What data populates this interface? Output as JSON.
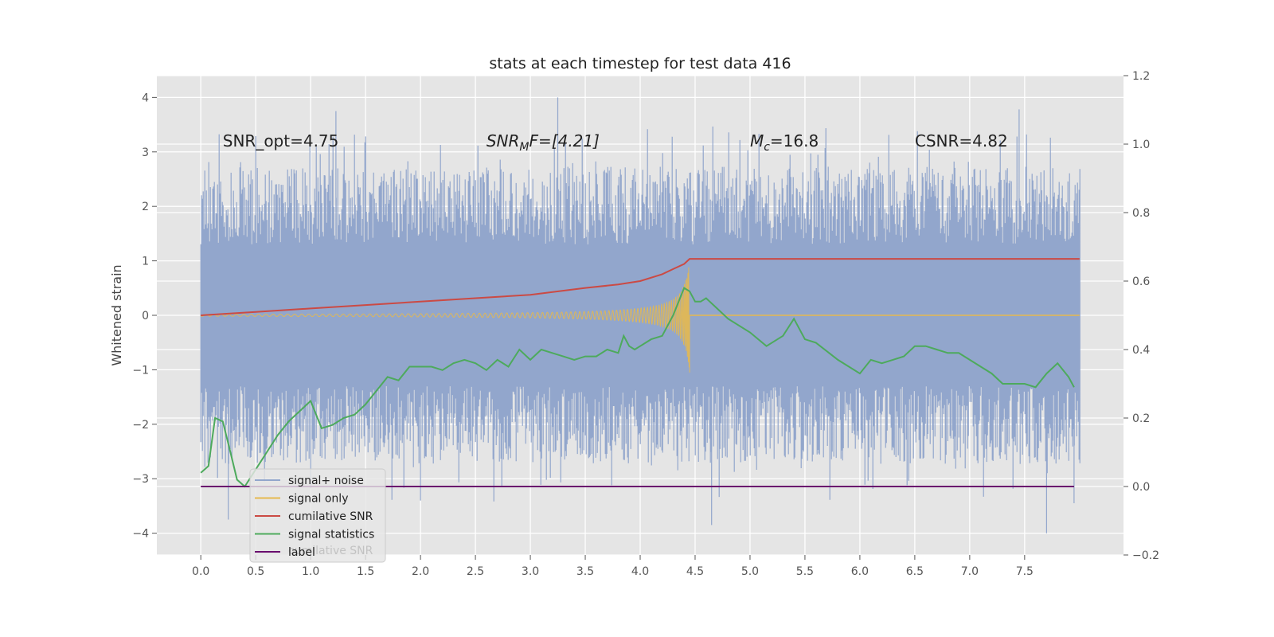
{
  "chart_data": {
    "type": "line",
    "title": "stats at each timestep for test data 416",
    "ylabel": "Whitened strain",
    "xlabel": "",
    "xlim": [
      -0.4,
      8.4
    ],
    "ylim": [
      -4.4,
      4.4
    ],
    "y2lim": [
      -0.2,
      1.2
    ],
    "x_ticks": [
      0.0,
      0.5,
      1.0,
      1.5,
      2.0,
      2.5,
      3.0,
      3.5,
      4.0,
      4.5,
      5.0,
      5.5,
      6.0,
      6.5,
      7.0,
      7.5
    ],
    "x_tick_labels": [
      "0.0",
      "0.5",
      "1.0",
      "1.5",
      "2.0",
      "2.5",
      "3.0",
      "3.5",
      "4.0",
      "4.5",
      "5.0",
      "5.5",
      "6.0",
      "6.5",
      "7.0",
      "7.5"
    ],
    "y_ticks": [
      -4,
      -3,
      -2,
      -1,
      0,
      1,
      2,
      3,
      4
    ],
    "y_tick_labels": [
      "−4",
      "−3",
      "−2",
      "−1",
      "0",
      "1",
      "2",
      "3",
      "4"
    ],
    "y2_ticks": [
      -0.2,
      0.0,
      0.2,
      0.4,
      0.6,
      0.8,
      1.0,
      1.2
    ],
    "y2_tick_labels": [
      "−0.2",
      "0.0",
      "0.2",
      "0.4",
      "0.6",
      "0.8",
      "1.0",
      "1.2"
    ],
    "grid": true,
    "legend_position": "lower-left",
    "annotations": [
      {
        "text": "SNR_opt=4.75",
        "x": 0.2,
        "y": 3.2
      },
      {
        "text": "SNR_MF=[4.21]",
        "x": 2.6,
        "y": 3.2,
        "main": "SNR",
        "sub": "M",
        "rest": "F=[4.21]"
      },
      {
        "text": "M_c=16.8",
        "x": 5.0,
        "y": 3.2,
        "main": "M",
        "sub": "c",
        "rest": "=16.8"
      },
      {
        "text": "CSNR=4.82",
        "x": 6.5,
        "y": 3.2
      }
    ],
    "series": [
      {
        "name": "signal+ noise",
        "color": "#92a6cc",
        "axis": "left",
        "kind": "noise-band",
        "x_range": [
          0.0,
          8.0
        ],
        "core_range": [
          -1.3,
          1.3
        ],
        "typical_peak": 2.6,
        "max_peak": 4.0,
        "min_peak": -4.0
      },
      {
        "name": "signal only",
        "color": "#e6b94f",
        "axis": "left",
        "kind": "chirp",
        "x_range": [
          0.0,
          4.45
        ],
        "merger_time": 4.45,
        "peak_amplitude": 1.05
      },
      {
        "name": "cumilative SNR",
        "color": "#cb4a44",
        "axis": "right",
        "x": [
          0.0,
          0.5,
          1.0,
          1.5,
          2.0,
          2.5,
          3.0,
          3.5,
          3.8,
          4.0,
          4.2,
          4.3,
          4.4,
          4.45,
          5.0,
          6.0,
          7.0,
          8.0
        ],
        "y": [
          0.5,
          0.51,
          0.52,
          0.53,
          0.54,
          0.55,
          0.56,
          0.58,
          0.59,
          0.6,
          0.62,
          0.635,
          0.65,
          0.665,
          0.665,
          0.665,
          0.665,
          0.665
        ]
      },
      {
        "name": "signal statistics",
        "color": "#4daa5c",
        "axis": "right",
        "x": [
          0.0,
          0.07,
          0.13,
          0.2,
          0.27,
          0.33,
          0.4,
          0.5,
          0.6,
          0.7,
          0.8,
          0.9,
          1.0,
          1.1,
          1.2,
          1.3,
          1.4,
          1.5,
          1.6,
          1.7,
          1.8,
          1.9,
          2.0,
          2.1,
          2.2,
          2.3,
          2.4,
          2.5,
          2.6,
          2.7,
          2.8,
          2.9,
          3.0,
          3.1,
          3.2,
          3.3,
          3.4,
          3.5,
          3.6,
          3.7,
          3.8,
          3.85,
          3.9,
          3.95,
          4.0,
          4.1,
          4.2,
          4.3,
          4.4,
          4.45,
          4.5,
          4.55,
          4.6,
          4.7,
          4.8,
          5.0,
          5.15,
          5.3,
          5.4,
          5.5,
          5.6,
          5.8,
          6.0,
          6.1,
          6.2,
          6.3,
          6.4,
          6.5,
          6.6,
          6.7,
          6.8,
          6.9,
          7.0,
          7.1,
          7.2,
          7.3,
          7.4,
          7.5,
          7.6,
          7.7,
          7.8,
          7.9,
          7.95
        ],
        "y": [
          0.04,
          0.06,
          0.2,
          0.19,
          0.1,
          0.02,
          0.0,
          0.05,
          0.1,
          0.15,
          0.19,
          0.22,
          0.25,
          0.17,
          0.18,
          0.2,
          0.21,
          0.24,
          0.28,
          0.32,
          0.31,
          0.35,
          0.35,
          0.35,
          0.34,
          0.36,
          0.37,
          0.36,
          0.34,
          0.37,
          0.35,
          0.4,
          0.37,
          0.4,
          0.39,
          0.38,
          0.37,
          0.38,
          0.38,
          0.4,
          0.39,
          0.44,
          0.41,
          0.4,
          0.41,
          0.43,
          0.44,
          0.5,
          0.58,
          0.57,
          0.54,
          0.54,
          0.55,
          0.52,
          0.49,
          0.45,
          0.41,
          0.44,
          0.49,
          0.43,
          0.42,
          0.37,
          0.33,
          0.37,
          0.36,
          0.37,
          0.38,
          0.41,
          0.41,
          0.4,
          0.39,
          0.39,
          0.37,
          0.35,
          0.33,
          0.3,
          0.3,
          0.3,
          0.29,
          0.33,
          0.36,
          0.32,
          0.29
        ]
      },
      {
        "name": "label",
        "color": "#6a0e6e",
        "axis": "right",
        "x": [
          0.0,
          7.95
        ],
        "y": [
          0.0,
          0.0
        ]
      }
    ],
    "legend_overlap_text": "cumilative SNR"
  }
}
